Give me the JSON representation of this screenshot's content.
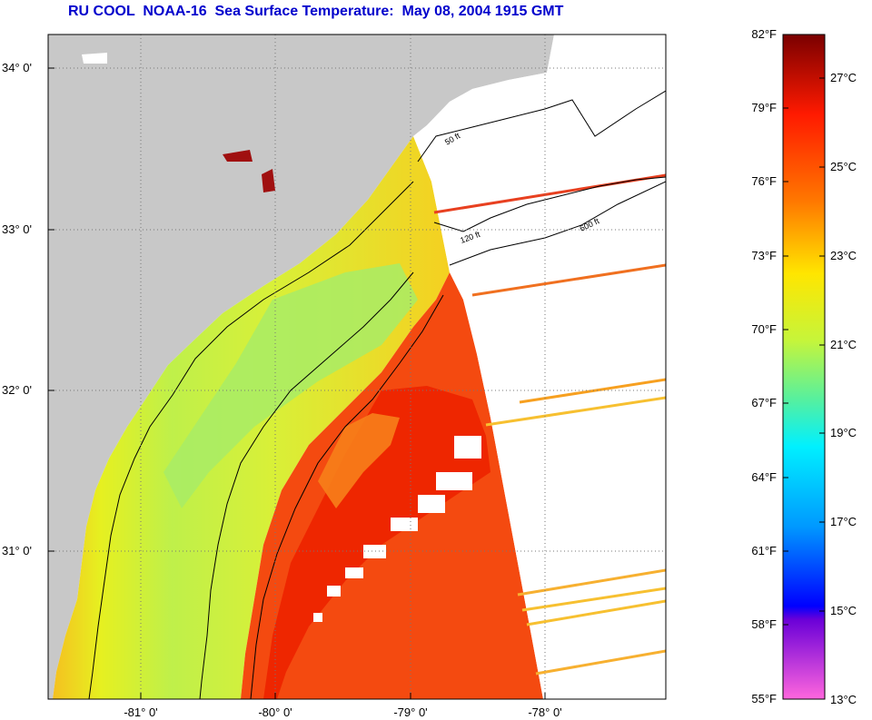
{
  "title": "RU COOL  NOAA-16  Sea Surface Temperature:  May 08, 2004 1915 GMT",
  "map": {
    "lat_labels": [
      "34° 0'",
      "33° 0'",
      "32° 0'",
      "31° 0'"
    ],
    "lon_labels": [
      "-81° 0'",
      "-80° 0'",
      "-79° 0'",
      "-78° 0'"
    ],
    "contour_labels": [
      "50 ft",
      "120 ft",
      "600 ft"
    ],
    "gridlines": true,
    "land_color": "#c8c8c8",
    "no_data_color": "#ffffff"
  },
  "colorbar": {
    "fahrenheit_labels": [
      "82°F",
      "79°F",
      "76°F",
      "73°F",
      "70°F",
      "67°F",
      "64°F",
      "61°F",
      "58°F",
      "55°F"
    ],
    "celsius_labels": [
      "27°C",
      "25°C",
      "23°C",
      "21°C",
      "19°C",
      "17°C",
      "15°C",
      "13°C"
    ],
    "colors": [
      "#7a0000",
      "#ff1a00",
      "#ff7700",
      "#ffe600",
      "#c6f53a",
      "#55f0a0",
      "#00f0ff",
      "#0099ff",
      "#0000ff",
      "#8800cc",
      "#ff66dd"
    ]
  }
}
